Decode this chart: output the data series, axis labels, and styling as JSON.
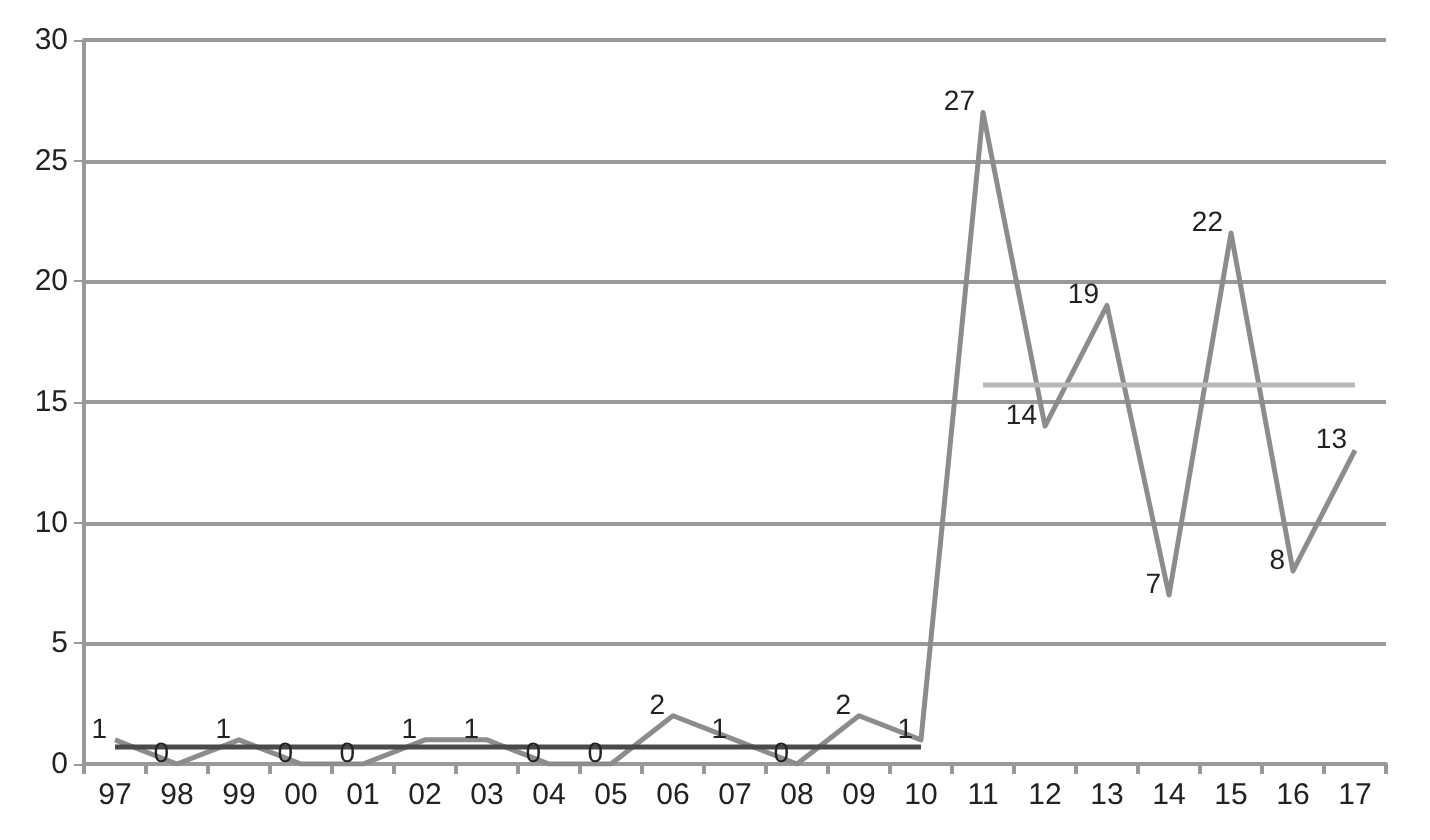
{
  "chart_data": {
    "type": "line",
    "categories": [
      "97",
      "98",
      "99",
      "00",
      "01",
      "02",
      "03",
      "04",
      "05",
      "06",
      "07",
      "08",
      "09",
      "10",
      "11",
      "12",
      "13",
      "14",
      "15",
      "16",
      "17"
    ],
    "series": [
      {
        "color": "#8c8c8c",
        "values": [
          1,
          0,
          1,
          0,
          0,
          1,
          1,
          0,
          0,
          2,
          1,
          0,
          2,
          1,
          27,
          14,
          19,
          7,
          22,
          8,
          13
        ],
        "value_labels": [
          "1",
          "0",
          "1",
          "0",
          "0",
          "1",
          "1",
          "0",
          "0",
          "2",
          "1",
          "0",
          "2",
          "1",
          "27",
          "14",
          "19",
          "7",
          "22",
          "8",
          "13"
        ]
      },
      {
        "color": "#4a4a4a",
        "x": [
          "97",
          "10"
        ],
        "values": [
          0.7,
          0.7
        ]
      },
      {
        "color": "#b8b8b8",
        "x": [
          "11",
          "17"
        ],
        "values": [
          15.7,
          15.7
        ]
      }
    ],
    "ylim": [
      0,
      30
    ],
    "yticks": [
      0,
      5,
      10,
      15,
      20,
      25,
      30
    ],
    "grid": "y",
    "marker": "none",
    "line_style": "solid"
  }
}
